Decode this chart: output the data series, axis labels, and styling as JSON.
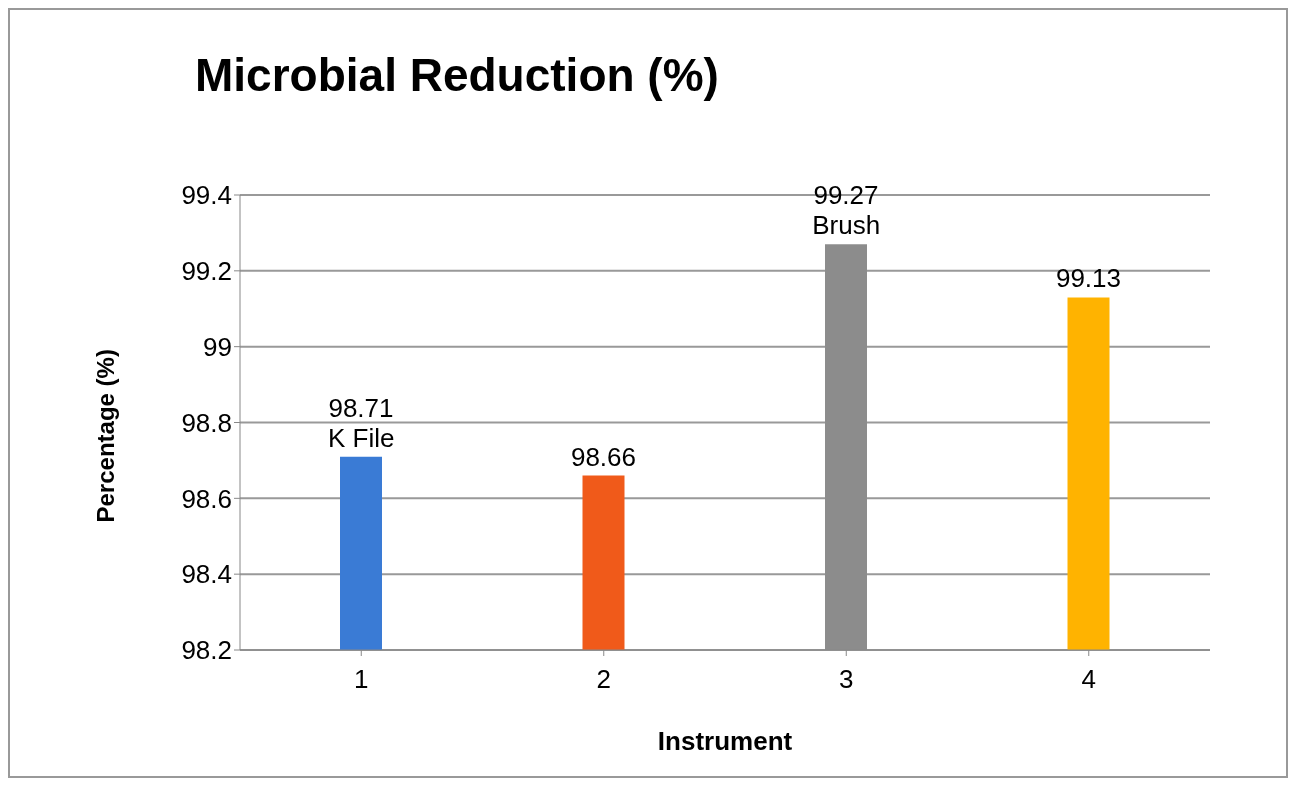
{
  "chart_data": {
    "type": "bar",
    "title": "Microbial Reduction (%)",
    "xlabel": "Instrument",
    "ylabel": "Percentage (%)",
    "categories": [
      "1",
      "2",
      "3",
      "4"
    ],
    "values": [
      98.71,
      98.66,
      99.27,
      99.13
    ],
    "colors": [
      "#3a7bd5",
      "#f05a1a",
      "#8c8c8c",
      "#ffb300"
    ],
    "ylim": [
      98.2,
      99.4
    ],
    "yticks": [
      98.2,
      98.4,
      98.6,
      98.8,
      99,
      99.2,
      99.4
    ],
    "grid": "y",
    "legend": false,
    "data_labels": true,
    "annotations": [
      {
        "text": "K File",
        "x": "1",
        "y": 98.71
      },
      {
        "text": "Brush",
        "x": "3",
        "y": 99.27
      }
    ]
  }
}
